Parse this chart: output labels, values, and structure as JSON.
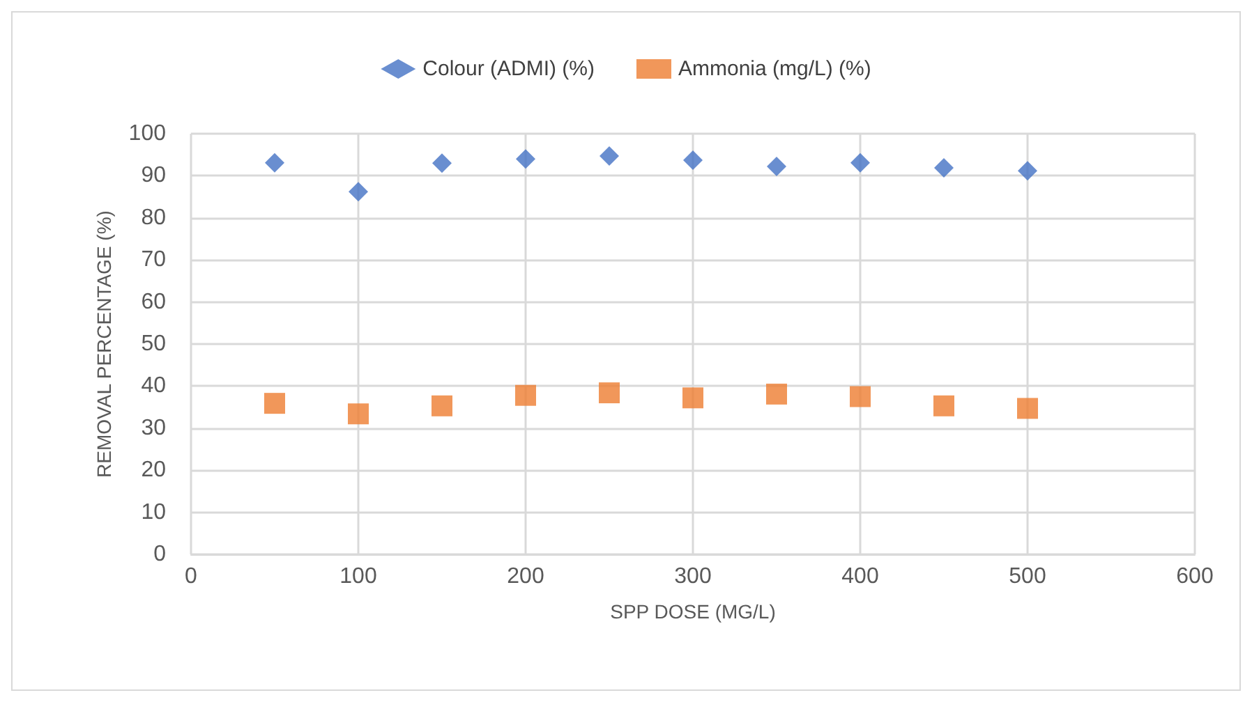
{
  "chart_data": {
    "type": "scatter",
    "xlabel": "SPP DOSE (MG/L)",
    "ylabel": "REMOVAL PERCENTAGE (%)",
    "x": [
      50,
      100,
      150,
      200,
      250,
      300,
      350,
      400,
      450,
      500
    ],
    "series": [
      {
        "name": "Colour (ADMI) (%)",
        "color": "#4472c4",
        "marker": "diamond",
        "values": [
          93.1,
          86.2,
          93,
          94,
          94.7,
          93.7,
          92.2,
          93.1,
          91.9,
          91.2
        ]
      },
      {
        "name": "Ammonia (mg/L) (%)",
        "color": "#ed7d31",
        "marker": "square",
        "values": [
          35.9,
          33.4,
          35.3,
          37.8,
          38.4,
          37.2,
          38.1,
          37.5,
          35.3,
          34.7
        ]
      }
    ],
    "xlim": [
      0,
      600
    ],
    "xticks": [
      0,
      100,
      200,
      300,
      400,
      500,
      600
    ],
    "ylim": [
      0,
      100
    ],
    "yticks": [
      0,
      10,
      20,
      30,
      40,
      50,
      60,
      70,
      80,
      90,
      100
    ],
    "grid": true,
    "legend": "top"
  }
}
